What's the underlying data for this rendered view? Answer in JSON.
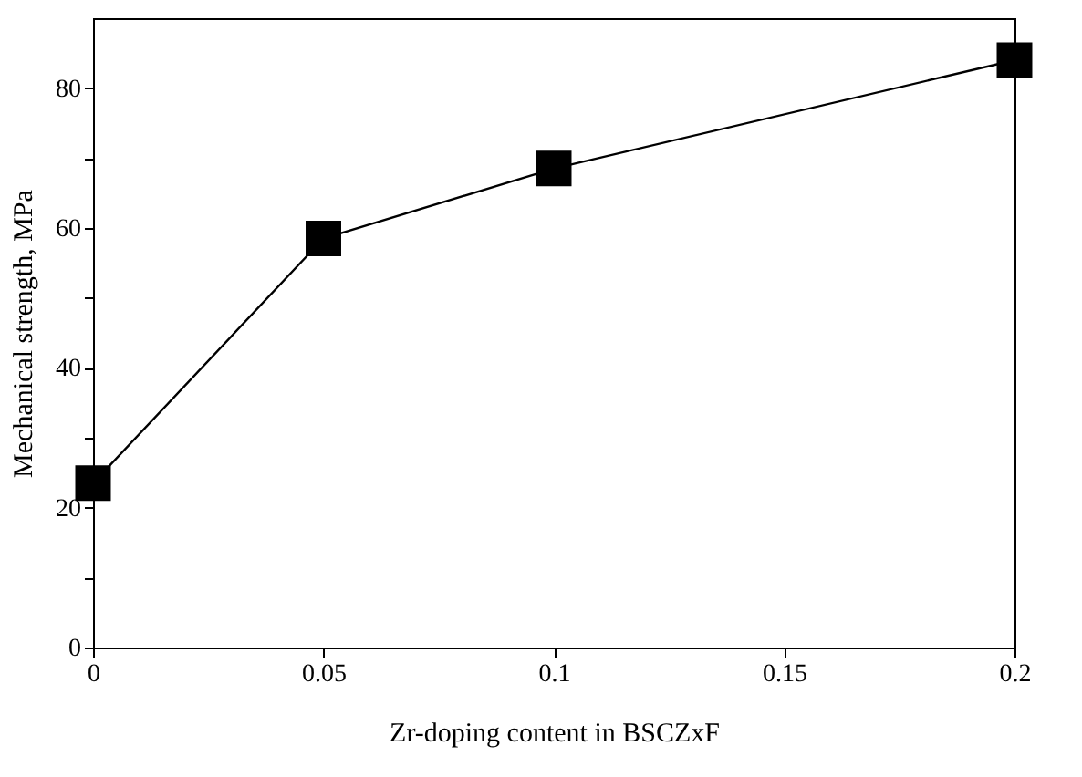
{
  "chart_data": {
    "type": "line",
    "xlabel": "Zr-doping content in BSCZxF",
    "ylabel": "Mechanical strength, MPa",
    "x": [
      0,
      0.05,
      0.1,
      0.2
    ],
    "series": [
      {
        "color": "#000000",
        "values": [
          23.5,
          58.5,
          68.5,
          84
        ]
      }
    ],
    "xlim": [
      0,
      0.2
    ],
    "xticks": [
      0,
      0.05,
      0.1,
      0.15,
      0.2
    ],
    "ylim": [
      0,
      90
    ],
    "yticks": [
      0,
      {
        "value": 10,
        "label": null
      },
      20,
      {
        "value": 30,
        "label": null
      },
      40,
      {
        "value": 50,
        "label": null
      },
      60,
      {
        "value": 70,
        "label": null
      },
      80
    ],
    "marker": "square",
    "line_style": "solid",
    "grid": false
  }
}
